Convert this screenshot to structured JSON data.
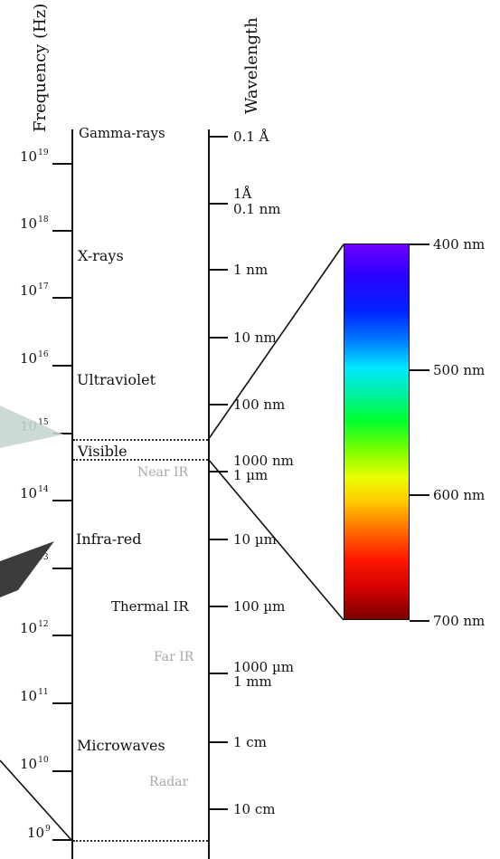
{
  "axes": {
    "frequency_title": "Frequency (Hz)",
    "wavelength_title": "Wavelength"
  },
  "frequency_ticks": [
    {
      "base": "10",
      "exp": "19"
    },
    {
      "base": "10",
      "exp": "18"
    },
    {
      "base": "10",
      "exp": "17"
    },
    {
      "base": "10",
      "exp": "16"
    },
    {
      "base": "10",
      "exp": "15"
    },
    {
      "base": "10",
      "exp": "14"
    },
    {
      "base": "10",
      "exp": "13"
    },
    {
      "base": "10",
      "exp": "12"
    },
    {
      "base": "10",
      "exp": "11"
    },
    {
      "base": "10",
      "exp": "10"
    },
    {
      "base": "10",
      "exp": "9"
    }
  ],
  "bands": {
    "gamma": "Gamma-rays",
    "xrays": "X-rays",
    "ultraviolet": "Ultraviolet",
    "visible": "Visible",
    "near_ir": "Near IR",
    "infrared": "Infra-red",
    "thermal_ir": "Thermal IR",
    "far_ir": "Far IR",
    "microwaves": "Microwaves",
    "radar": "Radar"
  },
  "wavelength_ticks": {
    "w0": "0.1 Å",
    "w1a": "1Å",
    "w1b": "0.1 nm",
    "w2": "1 nm",
    "w3": "10 nm",
    "w4": "100 nm",
    "w5a": "1000 nm",
    "w5b": "1 µm",
    "w6": "10 µm",
    "w7": "100 µm",
    "w8a": "1000 µm",
    "w8b": "1 mm",
    "w9": "1 cm",
    "w10": "10 cm"
  },
  "visible_scale": {
    "top": "400 nm",
    "t500": "500 nm",
    "t600": "600 nm",
    "bottom": "700 nm"
  }
}
